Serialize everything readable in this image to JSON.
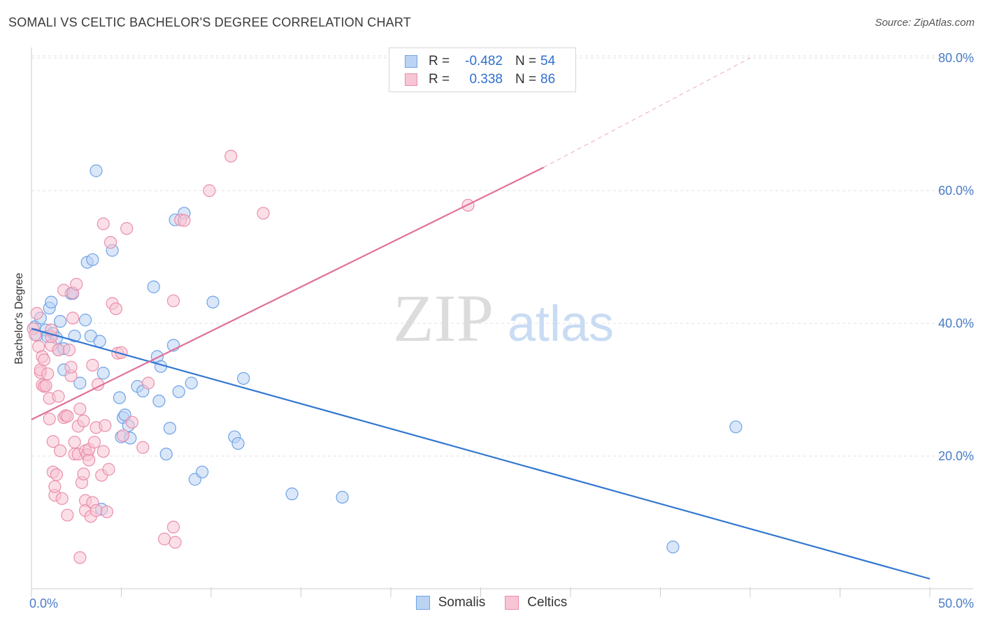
{
  "title": "SOMALI VS CELTIC BACHELOR'S DEGREE CORRELATION CHART",
  "source": "Source: ZipAtlas.com",
  "watermark": {
    "zip": "ZIP",
    "atlas": "atlas"
  },
  "legend": {
    "rows": [
      {
        "r_label": "R =",
        "r_value": "-0.482",
        "n_label": "N =",
        "n_value": "54",
        "color": "#6fa3e6",
        "fill": "#bcd4f4"
      },
      {
        "r_label": "R =",
        "r_value": "0.338",
        "n_label": "N =",
        "n_value": "86",
        "color": "#ea8fac",
        "fill": "#f7c5d4"
      }
    ]
  },
  "bottom_legend": [
    {
      "label": "Somalis",
      "color": "#6fa3e6",
      "fill": "#bcd4f4"
    },
    {
      "label": "Celtics",
      "color": "#ea8fac",
      "fill": "#f7c5d4"
    }
  ],
  "chart_data": {
    "type": "scatter",
    "title": "SOMALI VS CELTIC BACHELOR'S DEGREE CORRELATION CHART",
    "xlabel": "",
    "ylabel": "Bachelor's Degree",
    "xlim": [
      0,
      50
    ],
    "ylim": [
      0,
      82
    ],
    "x_tick_labels": [
      {
        "value": 0,
        "label": "0.0%"
      },
      {
        "value": 50,
        "label": "50.0%"
      }
    ],
    "y_tick_labels": [
      {
        "value": 20,
        "label": "20.0%"
      },
      {
        "value": 40,
        "label": "40.0%"
      },
      {
        "value": 60,
        "label": "60.0%"
      },
      {
        "value": 80,
        "label": "80.0%"
      }
    ],
    "grid": true,
    "legend_position": "top-center",
    "series": [
      {
        "name": "Somalis",
        "color": "#6fa3e6",
        "fill": "#bcd4f4",
        "trend": {
          "x": [
            0,
            50
          ],
          "y": [
            39.2,
            1.5
          ],
          "line_color": "#3277d0"
        },
        "points": [
          [
            0.2,
            39.5
          ],
          [
            0.3,
            38.2
          ],
          [
            0.5,
            40.8
          ],
          [
            0.8,
            39
          ],
          [
            0.9,
            38
          ],
          [
            1,
            42.3
          ],
          [
            1.1,
            43.2
          ],
          [
            1.2,
            38.5
          ],
          [
            1.4,
            37.8
          ],
          [
            1.5,
            36
          ],
          [
            1.6,
            40.3
          ],
          [
            1.8,
            36.2
          ],
          [
            1.8,
            33
          ],
          [
            2.2,
            44.5
          ],
          [
            2.3,
            44.5
          ],
          [
            2.4,
            38.1
          ],
          [
            2.7,
            31
          ],
          [
            3,
            40.5
          ],
          [
            3.1,
            49.2
          ],
          [
            3.3,
            38.1
          ],
          [
            3.4,
            49.6
          ],
          [
            3.6,
            63
          ],
          [
            3.8,
            37.3
          ],
          [
            3.9,
            12
          ],
          [
            4,
            32.5
          ],
          [
            4.5,
            51
          ],
          [
            4.9,
            28.8
          ],
          [
            5,
            22.9
          ],
          [
            5.1,
            25.8
          ],
          [
            5.2,
            26.2
          ],
          [
            5.4,
            24.6
          ],
          [
            5.5,
            22.7
          ],
          [
            5.9,
            30.5
          ],
          [
            6.2,
            29.8
          ],
          [
            6.8,
            45.5
          ],
          [
            7,
            35
          ],
          [
            7.1,
            28.3
          ],
          [
            7.2,
            33.5
          ],
          [
            7.5,
            20.3
          ],
          [
            7.7,
            24.2
          ],
          [
            7.9,
            36.7
          ],
          [
            8,
            55.6
          ],
          [
            8.2,
            29.7
          ],
          [
            8.5,
            56.6
          ],
          [
            8.9,
            31
          ],
          [
            9.1,
            16.5
          ],
          [
            9.5,
            17.6
          ],
          [
            10.1,
            43.2
          ],
          [
            11.3,
            22.9
          ],
          [
            11.5,
            21.9
          ],
          [
            11.8,
            31.7
          ],
          [
            14.5,
            14.3
          ],
          [
            17.3,
            13.8
          ],
          [
            39.2,
            24.4
          ],
          [
            35.7,
            6.3
          ]
        ]
      },
      {
        "name": "Celtics",
        "color": "#ea8fac",
        "fill": "#f7c5d4",
        "trend": {
          "x": [
            0,
            28.5
          ],
          "y": [
            25.5,
            63.5
          ],
          "line_color": "#e0709a",
          "dashed_extension_to": [
            40,
            80
          ]
        },
        "points": [
          [
            0.1,
            39.2
          ],
          [
            0.2,
            38.3
          ],
          [
            0.3,
            41.5
          ],
          [
            0.4,
            36.5
          ],
          [
            0.5,
            32.6
          ],
          [
            0.5,
            33
          ],
          [
            0.6,
            35
          ],
          [
            0.6,
            30.7
          ],
          [
            0.7,
            34.5
          ],
          [
            0.7,
            30.5
          ],
          [
            0.8,
            30.6
          ],
          [
            0.9,
            32.4
          ],
          [
            1,
            28.7
          ],
          [
            1,
            25.6
          ],
          [
            1.1,
            36.7
          ],
          [
            1.1,
            38
          ],
          [
            1.1,
            39
          ],
          [
            1.2,
            22.2
          ],
          [
            1.2,
            17.6
          ],
          [
            1.3,
            14.1
          ],
          [
            1.3,
            15.4
          ],
          [
            1.4,
            17.2
          ],
          [
            1.5,
            29
          ],
          [
            1.5,
            36
          ],
          [
            1.6,
            20.8
          ],
          [
            1.7,
            13.6
          ],
          [
            1.8,
            45
          ],
          [
            1.8,
            25.8
          ],
          [
            1.9,
            26.1
          ],
          [
            2,
            11.1
          ],
          [
            2,
            26
          ],
          [
            2.1,
            36
          ],
          [
            2.2,
            32.1
          ],
          [
            2.2,
            33.4
          ],
          [
            2.3,
            44.6
          ],
          [
            2.3,
            40.8
          ],
          [
            2.4,
            22.1
          ],
          [
            2.4,
            20.3
          ],
          [
            2.5,
            45.9
          ],
          [
            2.6,
            24.5
          ],
          [
            2.6,
            20.3
          ],
          [
            2.7,
            4.7
          ],
          [
            2.7,
            27.1
          ],
          [
            2.8,
            16
          ],
          [
            2.9,
            25.3
          ],
          [
            2.9,
            17.3
          ],
          [
            3,
            13.3
          ],
          [
            3,
            11.8
          ],
          [
            3,
            20.8
          ],
          [
            3.1,
            20.2
          ],
          [
            3.2,
            19.4
          ],
          [
            3.2,
            21
          ],
          [
            3.3,
            10.9
          ],
          [
            3.4,
            13
          ],
          [
            3.4,
            33.7
          ],
          [
            3.5,
            22.1
          ],
          [
            3.6,
            24.3
          ],
          [
            3.6,
            11.8
          ],
          [
            3.7,
            30.8
          ],
          [
            3.9,
            17.1
          ],
          [
            4,
            20.7
          ],
          [
            4.1,
            24.6
          ],
          [
            4,
            55
          ],
          [
            4.2,
            11.6
          ],
          [
            4.3,
            18
          ],
          [
            4.4,
            52.2
          ],
          [
            4.5,
            43
          ],
          [
            4.7,
            42.2
          ],
          [
            4.8,
            35.5
          ],
          [
            5,
            35.6
          ],
          [
            5.1,
            23.1
          ],
          [
            5.3,
            54.3
          ],
          [
            5.6,
            25.1
          ],
          [
            6.2,
            21.3
          ],
          [
            6.5,
            31
          ],
          [
            7.4,
            7.5
          ],
          [
            7.9,
            43.4
          ],
          [
            7.9,
            9.3
          ],
          [
            8,
            7
          ],
          [
            8.3,
            55.6
          ],
          [
            8.5,
            55.5
          ],
          [
            9.9,
            60
          ],
          [
            11.1,
            65.2
          ],
          [
            12.9,
            56.6
          ],
          [
            24.3,
            57.8
          ]
        ]
      }
    ]
  }
}
